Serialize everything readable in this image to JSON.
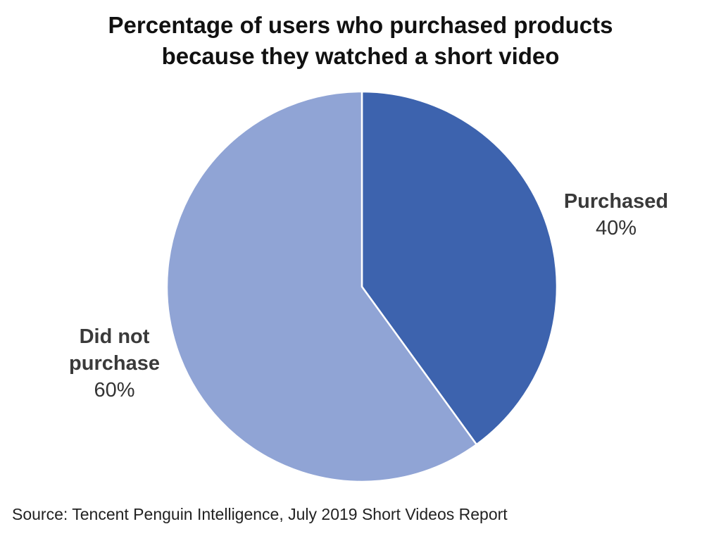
{
  "chart_data": {
    "type": "pie",
    "title_lines": [
      "Percentage of users who purchased products",
      "because they watched a short video"
    ],
    "slices": [
      {
        "label": "Purchased",
        "value": 40,
        "display": "40%",
        "color": "#3d63ae"
      },
      {
        "label": "Did not purchase",
        "label_lines": [
          "Did not",
          "purchase"
        ],
        "value": 60,
        "display": "60%",
        "color": "#90a4d5"
      }
    ],
    "start_angle_deg": 0,
    "direction": "clockwise",
    "source": "Source: Tencent Penguin Intelligence, July 2019 Short Videos Report"
  }
}
